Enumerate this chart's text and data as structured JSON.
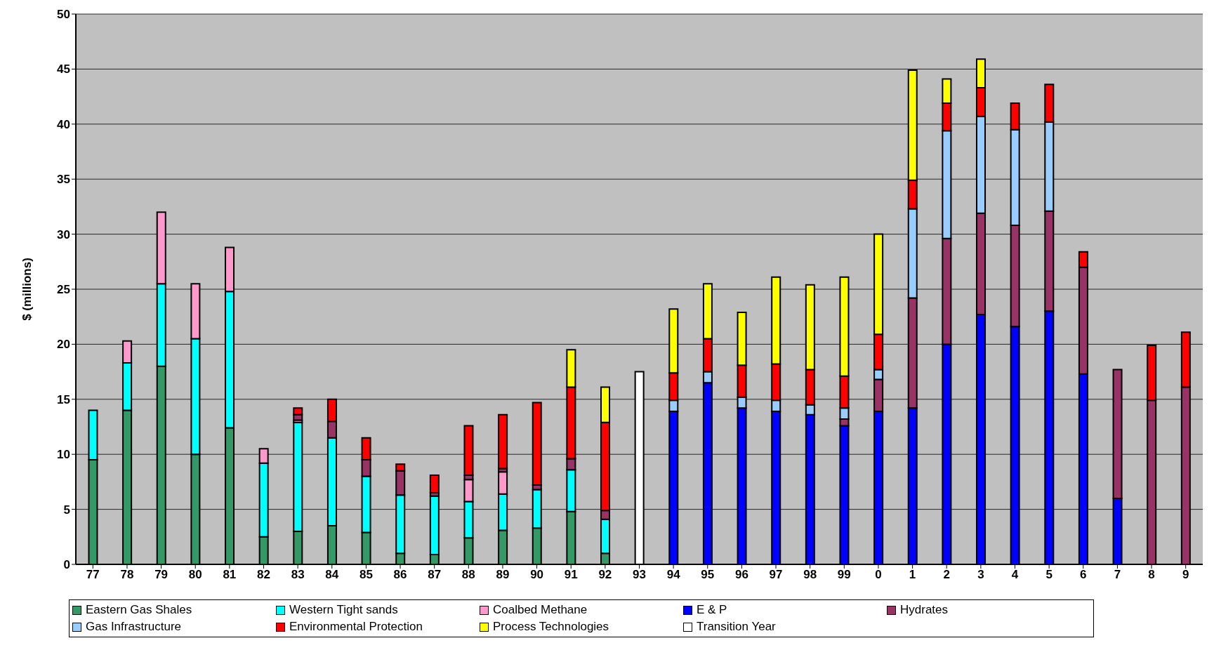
{
  "chart_data": {
    "type": "bar",
    "stacked": true,
    "ylabel": "$ (millions)",
    "ylim": [
      0,
      50
    ],
    "yticks": [
      0,
      5,
      10,
      15,
      20,
      25,
      30,
      35,
      40,
      45,
      50
    ],
    "grid": "y",
    "legend": "bottom",
    "categories": [
      "77",
      "78",
      "79",
      "80",
      "81",
      "82",
      "83",
      "84",
      "85",
      "86",
      "87",
      "88",
      "89",
      "90",
      "91",
      "92",
      "93",
      "94",
      "95",
      "96",
      "97",
      "98",
      "99",
      "0",
      "1",
      "2",
      "3",
      "4",
      "5",
      "6",
      "7",
      "8",
      "9"
    ],
    "series": [
      {
        "name": "Eastern Gas Shales",
        "color": "#339966",
        "values": [
          9.5,
          14,
          18,
          10,
          12.4,
          2.5,
          3.0,
          3.5,
          2.9,
          1.0,
          0.9,
          2.4,
          3.1,
          3.3,
          4.8,
          1.0,
          null,
          null,
          null,
          null,
          null,
          null,
          null,
          null,
          null,
          null,
          null,
          null,
          null,
          null,
          null,
          null,
          null
        ]
      },
      {
        "name": "Western Tight sands",
        "color": "#00ffff",
        "values": [
          4.5,
          4.3,
          7.5,
          10.5,
          12.4,
          6.7,
          9.9,
          8.0,
          5.1,
          5.3,
          5.3,
          3.3,
          3.3,
          3.5,
          3.8,
          3.1,
          null,
          null,
          null,
          null,
          null,
          null,
          null,
          null,
          null,
          null,
          null,
          null,
          null,
          null,
          null,
          null,
          null
        ]
      },
      {
        "name": "Coalbed Methane",
        "color": "#ff99cc",
        "values": [
          null,
          2.0,
          6.5,
          5.0,
          4.0,
          1.3,
          0.2,
          null,
          null,
          null,
          null,
          2.0,
          2.0,
          null,
          null,
          null,
          null,
          null,
          null,
          null,
          null,
          null,
          null,
          null,
          null,
          null,
          null,
          null,
          null,
          null,
          null,
          null,
          null
        ]
      },
      {
        "name": "E & P",
        "color": "#0000ff",
        "values": [
          null,
          null,
          null,
          null,
          null,
          null,
          null,
          null,
          null,
          null,
          null,
          null,
          null,
          null,
          null,
          null,
          null,
          13.9,
          16.5,
          14.2,
          13.9,
          13.6,
          12.6,
          13.9,
          14.2,
          20,
          22.7,
          21.6,
          23.0,
          17.3,
          6.0,
          null,
          null
        ]
      },
      {
        "name": "Hydrates",
        "color": "#993366",
        "values": [
          null,
          null,
          null,
          null,
          null,
          null,
          0.5,
          1.5,
          1.5,
          2.2,
          0.3,
          0.4,
          0.3,
          0.4,
          1.0,
          0.8,
          null,
          null,
          null,
          null,
          null,
          null,
          0.6,
          2.9,
          10.0,
          9.6,
          9.2,
          9.2,
          9.1,
          9.7,
          11.7,
          14.9,
          16.1
        ]
      },
      {
        "name": "Gas Infrastructure",
        "color": "#99ccff",
        "values": [
          null,
          null,
          null,
          null,
          null,
          null,
          null,
          null,
          null,
          null,
          null,
          null,
          null,
          null,
          null,
          null,
          null,
          1.0,
          1.0,
          1.0,
          1.0,
          0.9,
          1.0,
          0.9,
          8.1,
          9.8,
          8.8,
          8.7,
          8.1,
          null,
          null,
          null,
          null
        ]
      },
      {
        "name": "Environmental Protection",
        "color": "#ff0000",
        "values": [
          null,
          null,
          null,
          null,
          null,
          null,
          0.6,
          2.0,
          2.0,
          0.6,
          1.6,
          4.5,
          4.9,
          7.5,
          6.5,
          8.0,
          null,
          2.5,
          3.0,
          2.9,
          3.3,
          3.2,
          2.9,
          3.2,
          2.6,
          2.5,
          2.6,
          2.4,
          3.4,
          1.4,
          null,
          5.0,
          5.0
        ]
      },
      {
        "name": "Process Technologies",
        "color": "#ffff00",
        "values": [
          null,
          null,
          null,
          null,
          null,
          null,
          null,
          null,
          null,
          null,
          null,
          null,
          null,
          null,
          3.4,
          3.2,
          null,
          5.8,
          5.0,
          4.8,
          7.9,
          7.7,
          9.0,
          9.1,
          10.0,
          2.2,
          2.6,
          null,
          null,
          null,
          null,
          null,
          null
        ]
      },
      {
        "name": "Transition Year",
        "color": "#ffffff",
        "values": [
          null,
          null,
          null,
          null,
          null,
          null,
          null,
          null,
          null,
          null,
          null,
          null,
          null,
          null,
          null,
          null,
          17.5,
          null,
          null,
          null,
          null,
          null,
          null,
          null,
          null,
          null,
          null,
          null,
          null,
          null,
          null,
          null,
          null
        ]
      }
    ]
  }
}
